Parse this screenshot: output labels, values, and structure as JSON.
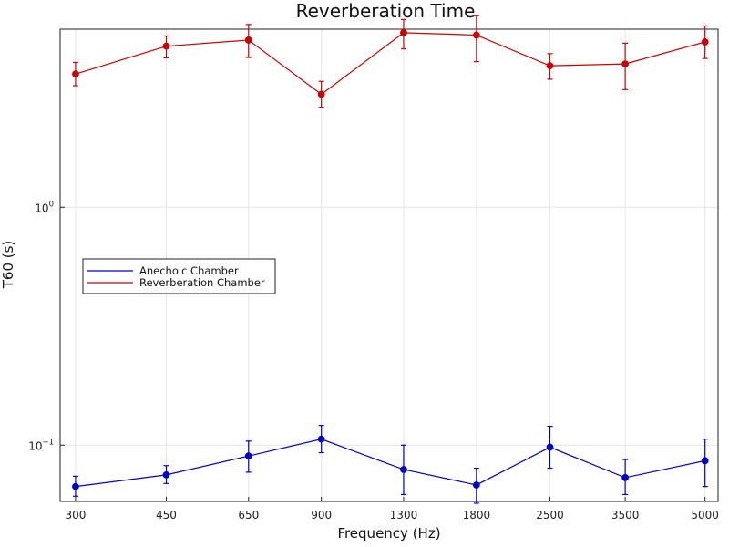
{
  "chart_data": {
    "type": "line",
    "title": "Reverberation Time",
    "xlabel": "Frequency (Hz)",
    "ylabel": "T60 (s)",
    "yscale": "log",
    "ylim": [
      0.058,
      5.6
    ],
    "ytick_values": [
      0.1,
      1
    ],
    "ytick_labels": [
      {
        "base": "10",
        "exp": "−1"
      },
      {
        "base": "10",
        "exp": "0"
      }
    ],
    "categories": [
      "300",
      "450",
      "650",
      "900",
      "1300",
      "1800",
      "2500",
      "3500",
      "5000"
    ],
    "x_positions": [
      300,
      450,
      650,
      900,
      1300,
      1800,
      2500,
      3500,
      5000
    ],
    "xlim": [
      280,
      5300
    ],
    "grid": true,
    "legend_position": "left",
    "series": [
      {
        "name": "Anechoic Chamber",
        "color": "#0000cc",
        "values": [
          0.067,
          0.075,
          0.09,
          0.106,
          0.079,
          0.068,
          0.098,
          0.073,
          0.086
        ],
        "err_low": [
          0.061,
          0.069,
          0.077,
          0.093,
          0.062,
          0.057,
          0.08,
          0.062,
          0.067
        ],
        "err_high": [
          0.074,
          0.082,
          0.104,
          0.121,
          0.1,
          0.08,
          0.12,
          0.087,
          0.106
        ]
      },
      {
        "name": "Reverberation Chamber",
        "color": "#cc0000",
        "values": [
          3.63,
          4.75,
          5.04,
          2.98,
          5.41,
          5.29,
          3.93,
          4.0,
          4.95
        ],
        "err_low": [
          3.24,
          4.24,
          4.26,
          2.63,
          4.63,
          4.09,
          3.45,
          3.12,
          4.22
        ],
        "err_high": [
          4.06,
          5.24,
          5.86,
          3.38,
          6.15,
          6.38,
          4.42,
          4.89,
          5.78
        ]
      }
    ]
  }
}
